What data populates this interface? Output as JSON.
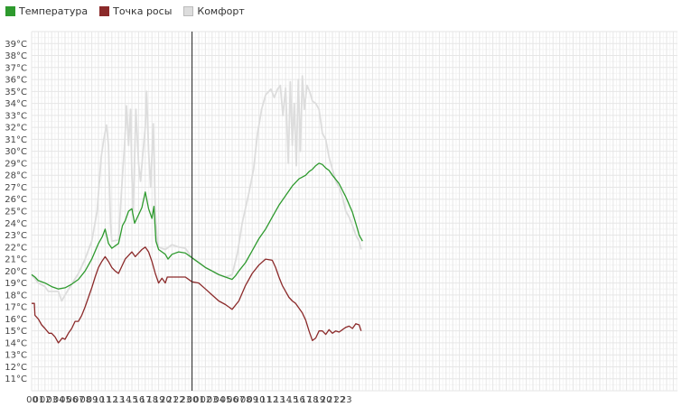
{
  "legend": {
    "items": [
      {
        "label": "Температура",
        "color": "#2e9a2e"
      },
      {
        "label": "Точка росы",
        "color": "#8b2a2a"
      },
      {
        "label": "Комфорт",
        "color": "#dddddd"
      }
    ]
  },
  "chart_data": {
    "type": "line",
    "x_tick_labels": [
      "00",
      "01",
      "02",
      "03",
      "04",
      "05",
      "06",
      "07",
      "08",
      "09",
      "10",
      "11",
      "12",
      "13",
      "14",
      "15",
      "16",
      "17",
      "18",
      "19",
      "20",
      "21",
      "22",
      "23",
      "00",
      "01",
      "02",
      "03",
      "04",
      "05",
      "06",
      "07",
      "08",
      "09",
      "10",
      "11",
      "12",
      "13",
      "14",
      "15",
      "16",
      "17",
      "18",
      "19",
      "20",
      "21",
      "22",
      "23"
    ],
    "y_tick_labels": [
      "11°C",
      "12°C",
      "13°C",
      "14°C",
      "15°C",
      "16°C",
      "17°C",
      "18°C",
      "19°C",
      "20°C",
      "21°C",
      "22°C",
      "23°C",
      "24°C",
      "25°C",
      "26°C",
      "27°C",
      "28°C",
      "29°C",
      "30°C",
      "31°C",
      "32°C",
      "33°C",
      "34°C",
      "35°C",
      "36°C",
      "37°C",
      "38°C",
      "39°C"
    ],
    "ylim": [
      10,
      40
    ],
    "xlim": [
      0,
      48
    ],
    "day_separator_hour": 24,
    "grid": true,
    "legend_position": "top-left",
    "series": [
      {
        "name": "Температура",
        "color": "#2e9a2e",
        "points": [
          [
            0,
            19.7
          ],
          [
            0.5,
            19.5
          ],
          [
            1,
            19.2
          ],
          [
            2,
            19.0
          ],
          [
            3,
            18.7
          ],
          [
            4,
            18.5
          ],
          [
            5,
            18.6
          ],
          [
            6,
            18.9
          ],
          [
            7,
            19.3
          ],
          [
            8,
            20.0
          ],
          [
            9,
            21.0
          ],
          [
            10,
            22.3
          ],
          [
            10.6,
            22.9
          ],
          [
            11,
            23.5
          ],
          [
            11.5,
            22.3
          ],
          [
            12,
            21.9
          ],
          [
            13,
            22.3
          ],
          [
            13.6,
            23.8
          ],
          [
            14,
            24.2
          ],
          [
            14.5,
            25.0
          ],
          [
            15,
            25.2
          ],
          [
            15.4,
            24.0
          ],
          [
            16,
            24.7
          ],
          [
            16.5,
            25.3
          ],
          [
            17,
            26.6
          ],
          [
            17.5,
            25.2
          ],
          [
            18,
            24.4
          ],
          [
            18.3,
            25.4
          ],
          [
            18.6,
            22.5
          ],
          [
            19,
            21.8
          ],
          [
            20,
            21.4
          ],
          [
            20.4,
            21.0
          ],
          [
            21,
            21.4
          ],
          [
            22,
            21.6
          ],
          [
            23,
            21.5
          ],
          [
            24,
            21.1
          ],
          [
            25,
            20.7
          ],
          [
            26,
            20.3
          ],
          [
            27,
            20.0
          ],
          [
            28,
            19.7
          ],
          [
            29,
            19.5
          ],
          [
            30,
            19.3
          ],
          [
            30.5,
            19.6
          ],
          [
            31,
            20.0
          ],
          [
            32,
            20.7
          ],
          [
            33,
            21.7
          ],
          [
            34,
            22.7
          ],
          [
            35,
            23.5
          ],
          [
            36,
            24.5
          ],
          [
            37,
            25.5
          ],
          [
            38,
            26.3
          ],
          [
            39,
            27.1
          ],
          [
            40,
            27.7
          ],
          [
            41,
            28.0
          ],
          [
            41.5,
            28.3
          ],
          [
            42,
            28.5
          ],
          [
            42.5,
            28.8
          ],
          [
            43,
            29.0
          ],
          [
            43.5,
            28.9
          ],
          [
            44,
            28.6
          ],
          [
            44.5,
            28.4
          ],
          [
            45,
            28.0
          ],
          [
            46,
            27.3
          ],
          [
            47,
            26.2
          ],
          [
            48,
            24.9
          ],
          [
            48.7,
            23.6
          ],
          [
            49,
            23.0
          ],
          [
            49.5,
            22.5
          ]
        ]
      },
      {
        "name": "Точка росы",
        "color": "#8b2a2a",
        "points": [
          [
            0,
            17.3
          ],
          [
            0.4,
            17.3
          ],
          [
            0.5,
            16.3
          ],
          [
            1,
            16.0
          ],
          [
            1.5,
            15.5
          ],
          [
            2,
            15.2
          ],
          [
            2.6,
            14.8
          ],
          [
            3,
            14.8
          ],
          [
            3.5,
            14.5
          ],
          [
            4,
            14.0
          ],
          [
            4.6,
            14.4
          ],
          [
            5,
            14.3
          ],
          [
            5.5,
            14.8
          ],
          [
            6,
            15.2
          ],
          [
            6.5,
            15.8
          ],
          [
            7,
            15.8
          ],
          [
            7.5,
            16.3
          ],
          [
            8,
            17.0
          ],
          [
            8.5,
            17.8
          ],
          [
            9,
            18.6
          ],
          [
            9.5,
            19.5
          ],
          [
            10,
            20.3
          ],
          [
            10.5,
            20.8
          ],
          [
            11,
            21.2
          ],
          [
            11.5,
            20.8
          ],
          [
            12,
            20.3
          ],
          [
            12.5,
            20.0
          ],
          [
            13,
            19.8
          ],
          [
            13.5,
            20.4
          ],
          [
            14,
            21.0
          ],
          [
            14.5,
            21.3
          ],
          [
            15,
            21.6
          ],
          [
            15.5,
            21.2
          ],
          [
            16,
            21.5
          ],
          [
            16.5,
            21.8
          ],
          [
            17,
            22.0
          ],
          [
            17.5,
            21.6
          ],
          [
            18,
            20.8
          ],
          [
            18.5,
            19.8
          ],
          [
            19,
            19.0
          ],
          [
            19.5,
            19.4
          ],
          [
            20,
            19.0
          ],
          [
            20.3,
            19.5
          ],
          [
            21,
            19.5
          ],
          [
            22,
            19.5
          ],
          [
            23,
            19.5
          ],
          [
            24,
            19.1
          ],
          [
            25,
            19.0
          ],
          [
            26,
            18.5
          ],
          [
            27,
            18.0
          ],
          [
            28,
            17.5
          ],
          [
            29,
            17.2
          ],
          [
            30,
            16.8
          ],
          [
            31,
            17.5
          ],
          [
            32,
            18.8
          ],
          [
            33,
            19.8
          ],
          [
            34,
            20.5
          ],
          [
            35,
            21.0
          ],
          [
            36,
            20.9
          ],
          [
            36.5,
            20.3
          ],
          [
            37,
            19.5
          ],
          [
            37.5,
            18.8
          ],
          [
            38,
            18.3
          ],
          [
            38.5,
            17.8
          ],
          [
            39,
            17.5
          ],
          [
            39.5,
            17.3
          ],
          [
            40,
            16.9
          ],
          [
            40.5,
            16.5
          ],
          [
            41,
            15.9
          ],
          [
            41.5,
            15.0
          ],
          [
            42,
            14.2
          ],
          [
            42.5,
            14.4
          ],
          [
            43,
            15.0
          ],
          [
            43.5,
            15.0
          ],
          [
            44,
            14.7
          ],
          [
            44.5,
            15.1
          ],
          [
            45,
            14.8
          ],
          [
            45.5,
            15.0
          ],
          [
            46,
            14.9
          ],
          [
            46.5,
            15.1
          ],
          [
            47,
            15.3
          ],
          [
            47.5,
            15.4
          ],
          [
            48,
            15.2
          ],
          [
            48.5,
            15.6
          ],
          [
            49,
            15.5
          ],
          [
            49.3,
            15.0
          ]
        ]
      },
      {
        "name": "Комфорт",
        "color": "#dddddd",
        "points": [
          [
            0,
            19.7
          ],
          [
            1,
            19.0
          ],
          [
            2,
            18.7
          ],
          [
            2.5,
            18.3
          ],
          [
            3,
            18.3
          ],
          [
            4,
            18.3
          ],
          [
            4.5,
            17.5
          ],
          [
            5,
            18.0
          ],
          [
            6,
            18.9
          ],
          [
            7,
            19.8
          ],
          [
            8,
            21.0
          ],
          [
            9,
            22.5
          ],
          [
            9.8,
            25.0
          ],
          [
            10.4,
            29.5
          ],
          [
            10.8,
            31.0
          ],
          [
            11.2,
            32.2
          ],
          [
            11.5,
            30.5
          ],
          [
            11.8,
            24.0
          ],
          [
            12,
            22.5
          ],
          [
            13,
            22.6
          ],
          [
            13.6,
            28.0
          ],
          [
            13.9,
            30.5
          ],
          [
            14.2,
            33.8
          ],
          [
            14.5,
            30.5
          ],
          [
            14.8,
            33.5
          ],
          [
            15.0,
            28.0
          ],
          [
            15.2,
            25.0
          ],
          [
            15.6,
            33.5
          ],
          [
            16.0,
            29.0
          ],
          [
            16.3,
            27.5
          ],
          [
            16.6,
            29.5
          ],
          [
            17.0,
            32.0
          ],
          [
            17.2,
            35.0
          ],
          [
            17.5,
            30.0
          ],
          [
            17.8,
            27.0
          ],
          [
            18.2,
            32.3
          ],
          [
            18.5,
            25.0
          ],
          [
            18.8,
            22.5
          ],
          [
            19,
            22.0
          ],
          [
            20,
            21.8
          ],
          [
            21,
            22.2
          ],
          [
            22,
            22.0
          ],
          [
            23,
            21.9
          ],
          [
            24,
            21.1
          ],
          [
            25,
            20.7
          ],
          [
            26,
            20.3
          ],
          [
            27,
            20.0
          ],
          [
            28,
            19.7
          ],
          [
            29,
            19.5
          ],
          [
            30,
            19.7
          ],
          [
            30.8,
            21.5
          ],
          [
            31.5,
            24.0
          ],
          [
            32.5,
            26.5
          ],
          [
            33.2,
            28.5
          ],
          [
            33.8,
            31.5
          ],
          [
            34.4,
            33.5
          ],
          [
            35,
            34.7
          ],
          [
            35.8,
            35.2
          ],
          [
            36.3,
            34.5
          ],
          [
            36.8,
            35.2
          ],
          [
            37.2,
            35.5
          ],
          [
            37.6,
            33.0
          ],
          [
            38.0,
            35.3
          ],
          [
            38.4,
            29.0
          ],
          [
            38.7,
            35.8
          ],
          [
            39.0,
            30.5
          ],
          [
            39.3,
            34.0
          ],
          [
            39.6,
            28.8
          ],
          [
            39.9,
            36.0
          ],
          [
            40.2,
            30.0
          ],
          [
            40.5,
            36.3
          ],
          [
            40.8,
            33.5
          ],
          [
            41.2,
            35.5
          ],
          [
            41.6,
            35.0
          ],
          [
            42.0,
            34.2
          ],
          [
            42.5,
            34.0
          ],
          [
            43,
            33.5
          ],
          [
            43.5,
            31.5
          ],
          [
            44,
            31.0
          ],
          [
            44.5,
            29.5
          ],
          [
            45,
            28.5
          ],
          [
            45.5,
            27.5
          ],
          [
            46,
            27.0
          ],
          [
            46.5,
            26.2
          ],
          [
            47,
            25.0
          ],
          [
            47.5,
            24.5
          ],
          [
            48,
            23.8
          ],
          [
            48.5,
            23.0
          ],
          [
            49,
            22.5
          ],
          [
            49.3,
            21.8
          ]
        ]
      }
    ]
  }
}
